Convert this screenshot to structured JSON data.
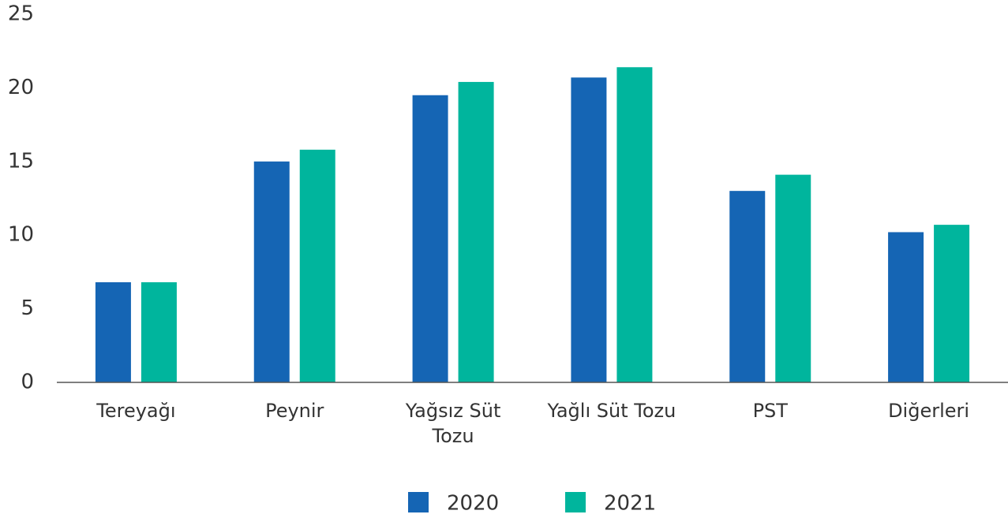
{
  "chart_data": {
    "type": "bar",
    "categories": [
      "Tereyağı",
      "Peynir",
      "Yağsız Süt Tozu",
      "Yağlı Süt Tozu",
      "PST",
      "Diğerleri"
    ],
    "series": [
      {
        "name": "2020",
        "color": "#1565b4",
        "values": [
          6.8,
          15.0,
          19.5,
          20.7,
          13.0,
          10.2
        ]
      },
      {
        "name": "2021",
        "color": "#00b59d",
        "values": [
          6.8,
          15.8,
          20.4,
          21.4,
          14.1,
          10.7
        ]
      }
    ],
    "ylim": [
      0,
      25
    ],
    "yticks": [
      0,
      5,
      10,
      15,
      20,
      25
    ],
    "grid": false,
    "legend": "bottom"
  }
}
